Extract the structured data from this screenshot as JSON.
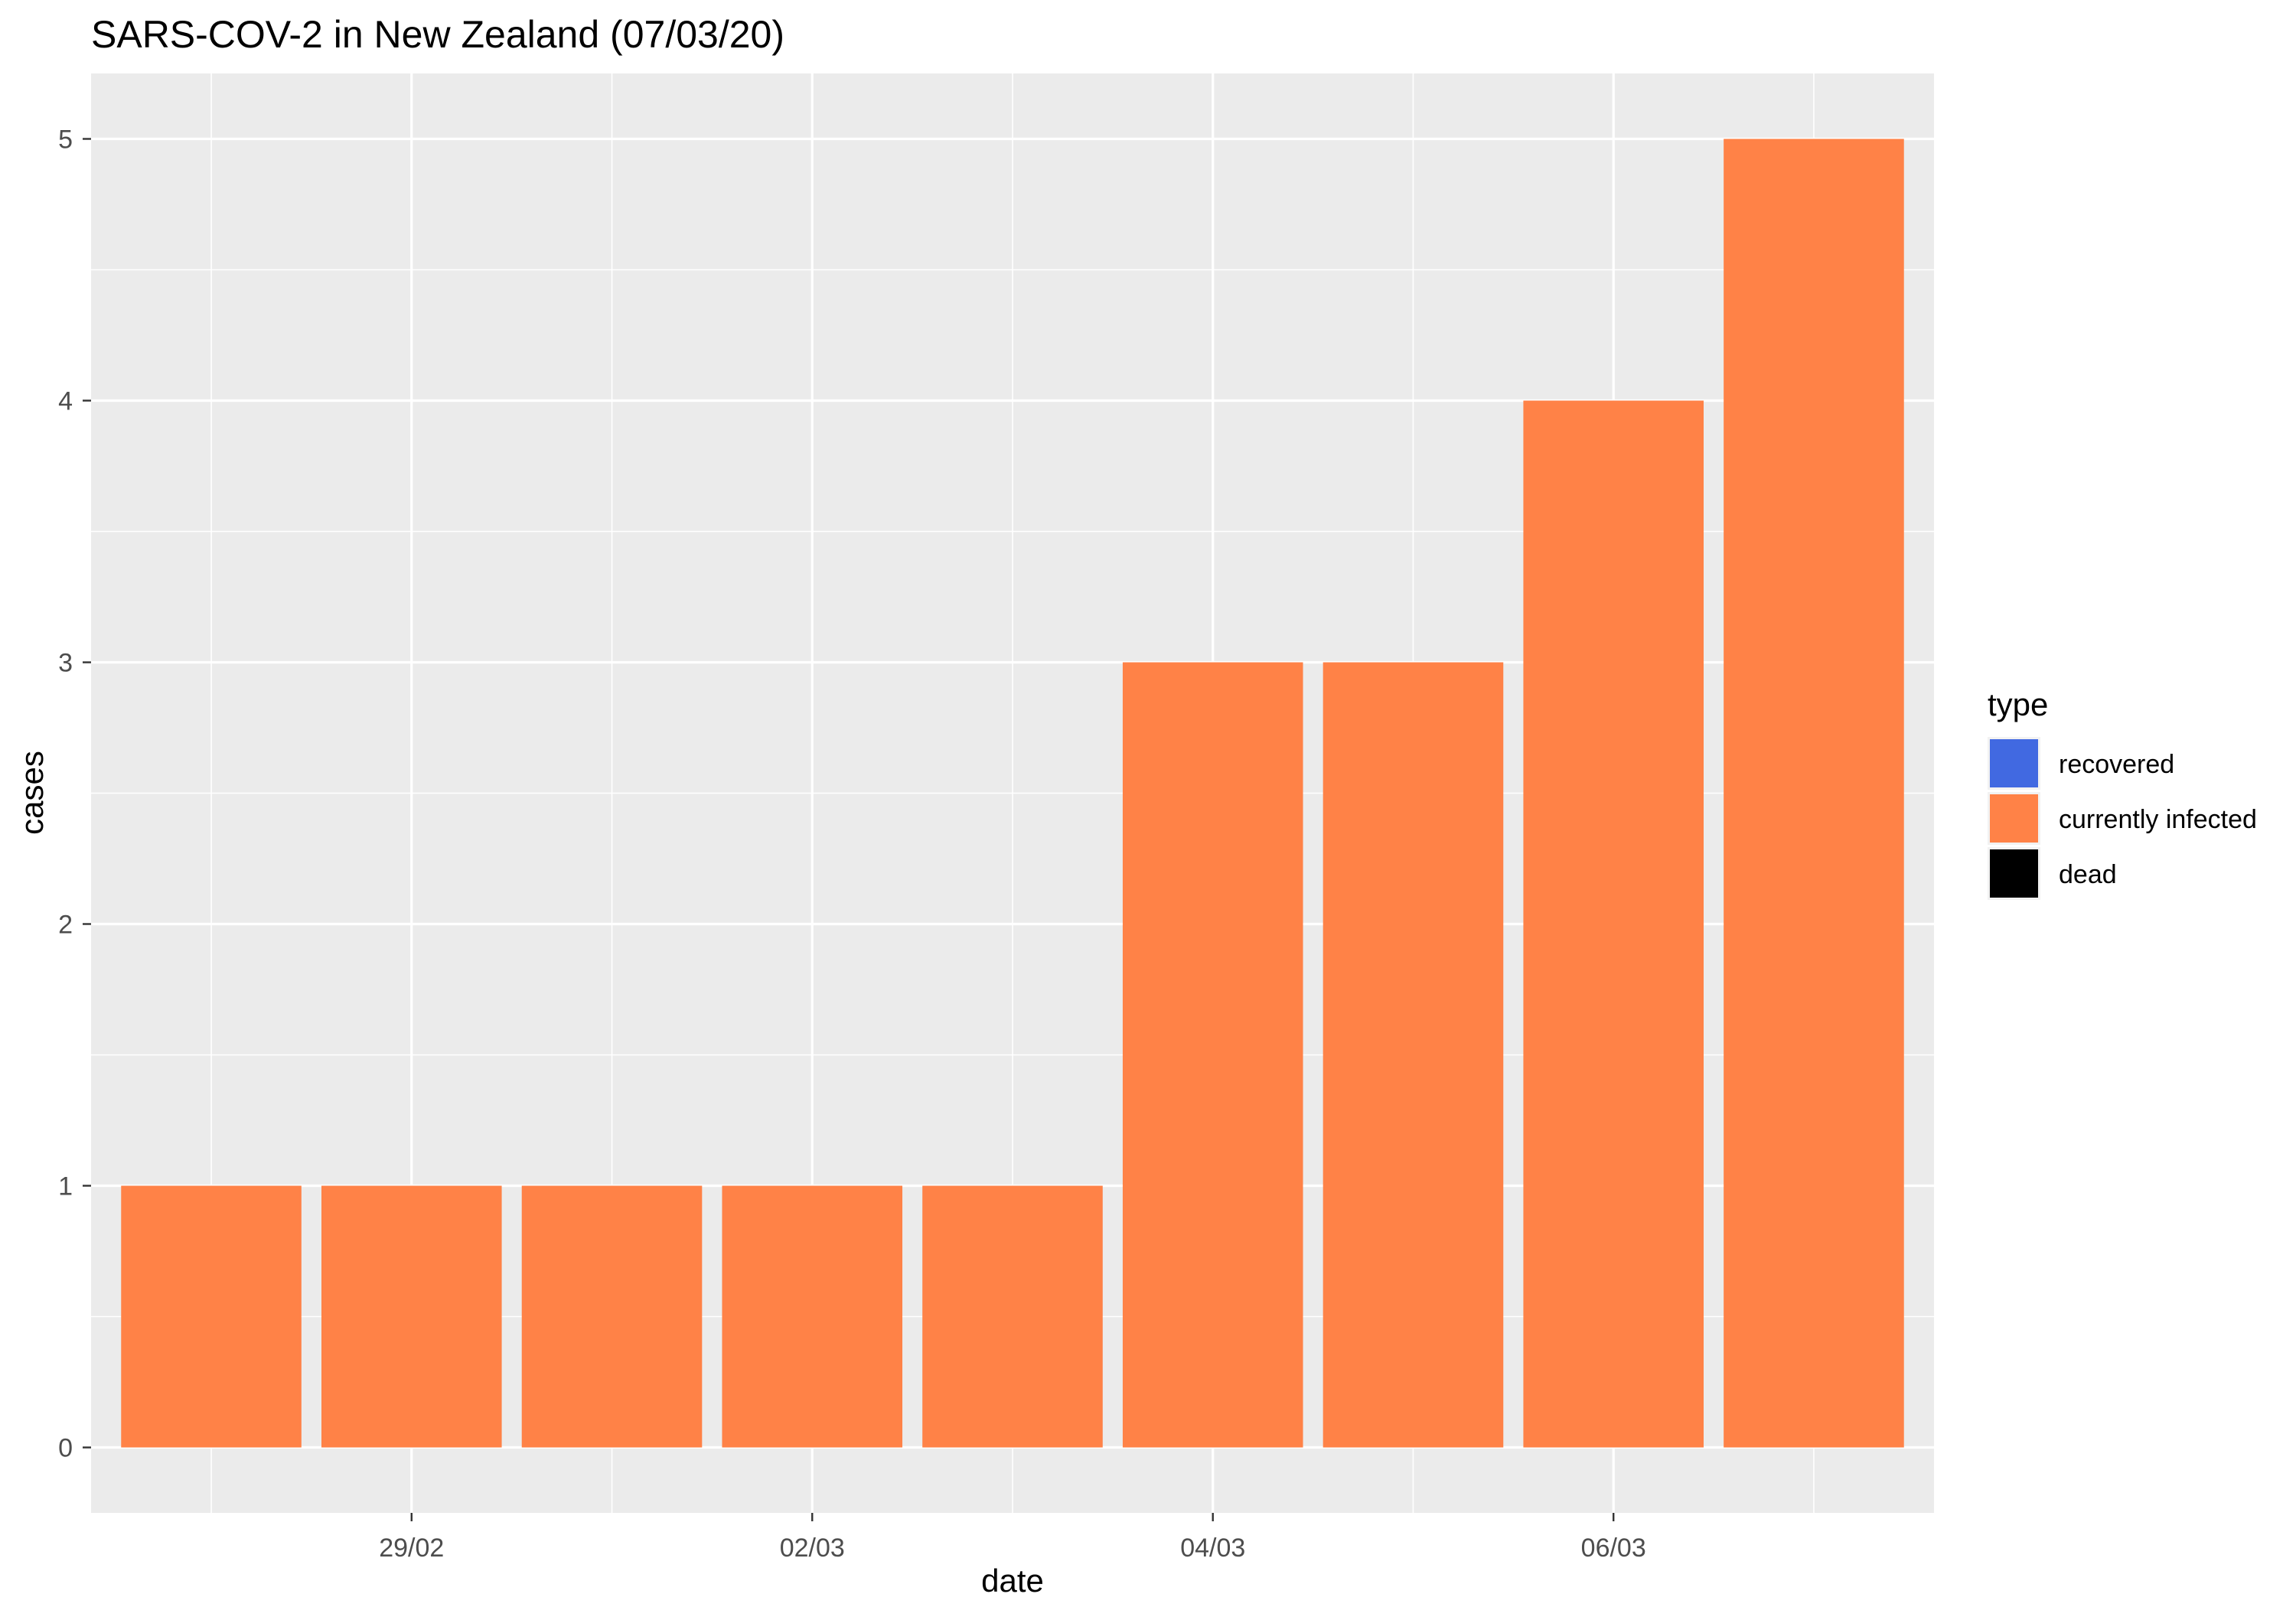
{
  "chart_data": {
    "type": "bar",
    "title": "SARS-COV-2 in New Zealand (07/03/20)",
    "xlabel": "date",
    "ylabel": "cases",
    "categories": [
      "2020-02-28",
      "2020-02-29",
      "2020-03-01",
      "2020-03-02",
      "2020-03-03",
      "2020-03-04",
      "2020-03-05",
      "2020-03-06",
      "2020-03-07"
    ],
    "x_tick_labels": [
      "29/02",
      "02/03",
      "04/03",
      "06/03"
    ],
    "x_tick_dates": [
      "2020-02-29",
      "2020-03-02",
      "2020-03-04",
      "2020-03-06"
    ],
    "y_ticks": [
      0,
      1,
      2,
      3,
      4,
      5
    ],
    "ylim": [
      -0.25,
      5.25
    ],
    "grid": true,
    "series": [
      {
        "name": "recovered",
        "color": "#4169e1",
        "values": [
          0,
          0,
          0,
          0,
          0,
          0,
          0,
          0,
          0
        ]
      },
      {
        "name": "currently infected",
        "color": "#ff8247",
        "values": [
          1,
          1,
          1,
          1,
          1,
          3,
          3,
          4,
          5
        ]
      },
      {
        "name": "dead",
        "color": "#000000",
        "values": [
          0,
          0,
          0,
          0,
          0,
          0,
          0,
          0,
          0
        ]
      }
    ],
    "legend": {
      "title": "type",
      "placement": "right"
    },
    "panel_color": "#ebebeb",
    "gridline_color": "#ffffff"
  }
}
